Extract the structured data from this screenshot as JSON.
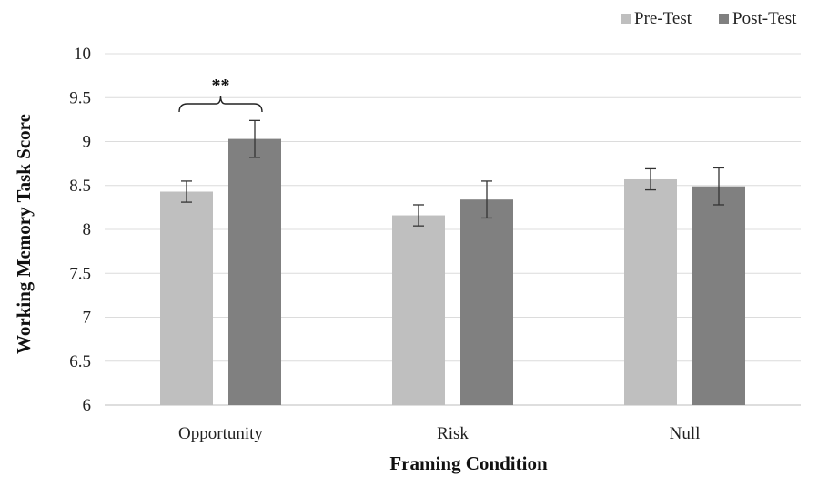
{
  "chart_data": {
    "type": "bar",
    "xlabel": "Framing Condition",
    "ylabel": "Working Memory Task Score",
    "categories": [
      "Opportunity",
      "Risk",
      "Null"
    ],
    "ylim": [
      6,
      10
    ],
    "yticks": [
      "6",
      "6.5",
      "7",
      "7.5",
      "8",
      "8.5",
      "9",
      "9.5",
      "10"
    ],
    "grid": true,
    "legend_position": "top-right",
    "series": [
      {
        "name": "Pre-Test",
        "color": "#bfbfbf",
        "values": [
          8.43,
          8.16,
          8.57
        ],
        "errors": [
          0.12,
          0.12,
          0.12
        ]
      },
      {
        "name": "Post-Test",
        "color": "#808080",
        "values": [
          9.03,
          8.34,
          8.49
        ],
        "errors": [
          0.21,
          0.21,
          0.21
        ]
      }
    ],
    "annotations": [
      {
        "text": "**",
        "category": "Opportunity",
        "between_series": [
          "Pre-Test",
          "Post-Test"
        ]
      }
    ]
  }
}
